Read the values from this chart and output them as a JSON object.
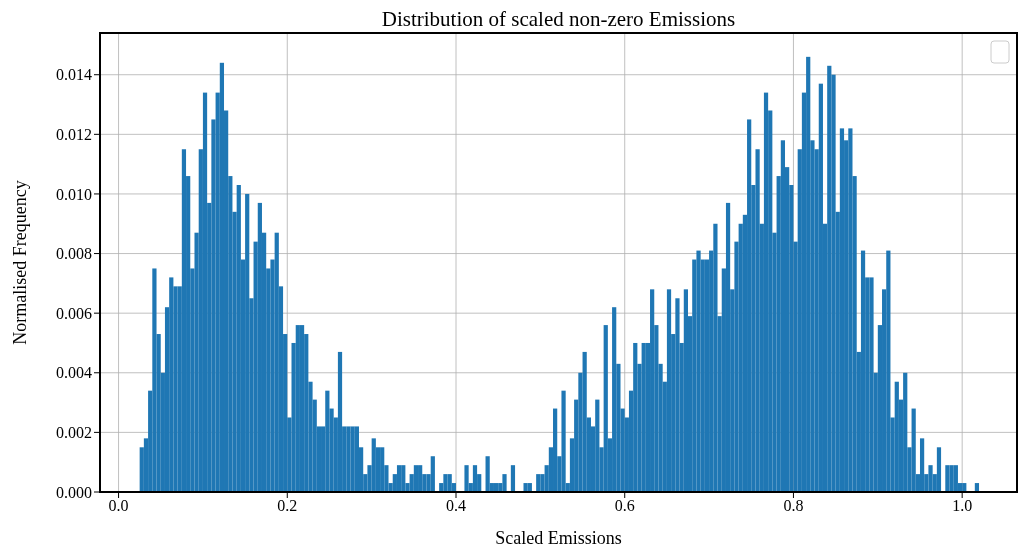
{
  "chart_data": {
    "type": "histogram",
    "title": "Distribution of scaled non-zero Emissions",
    "xlabel": "Scaled Emissions",
    "ylabel": "Normalised Frequency",
    "color": "#1f77b4",
    "bins": [
      0.025,
      0.03,
      0.035,
      0.04,
      0.045,
      0.05,
      0.055,
      0.06,
      0.065,
      0.07,
      0.075,
      0.08,
      0.085,
      0.09,
      0.095,
      0.1,
      0.105,
      0.11,
      0.115,
      0.12,
      0.125,
      0.13,
      0.135,
      0.14,
      0.145,
      0.15,
      0.155,
      0.16,
      0.165,
      0.17,
      0.175,
      0.18,
      0.185,
      0.19,
      0.195,
      0.2,
      0.205,
      0.21,
      0.215,
      0.22,
      0.225,
      0.23,
      0.235,
      0.24,
      0.245,
      0.25,
      0.255,
      0.26,
      0.265,
      0.27,
      0.275,
      0.28,
      0.285,
      0.29,
      0.295,
      0.3,
      0.305,
      0.31,
      0.315,
      0.32,
      0.325,
      0.33,
      0.335,
      0.34,
      0.345,
      0.35,
      0.355,
      0.36,
      0.365,
      0.37,
      0.375,
      0.38,
      0.385,
      0.39,
      0.395,
      0.4,
      0.405,
      0.41,
      0.415,
      0.42,
      0.425,
      0.43,
      0.435,
      0.44,
      0.445,
      0.45,
      0.455,
      0.46,
      0.465,
      0.47,
      0.475,
      0.48,
      0.485,
      0.49,
      0.495,
      0.5,
      0.505,
      0.51,
      0.515,
      0.52,
      0.525,
      0.53,
      0.535,
      0.54,
      0.545,
      0.55,
      0.555,
      0.56,
      0.565,
      0.57,
      0.575,
      0.58,
      0.585,
      0.59,
      0.595,
      0.6,
      0.605,
      0.61,
      0.615,
      0.62,
      0.625,
      0.63,
      0.635,
      0.64,
      0.645,
      0.65,
      0.655,
      0.66,
      0.665,
      0.67,
      0.675,
      0.68,
      0.685,
      0.69,
      0.695,
      0.7,
      0.705,
      0.71,
      0.715,
      0.72,
      0.725,
      0.73,
      0.735,
      0.74,
      0.745,
      0.75,
      0.755,
      0.76,
      0.765,
      0.77,
      0.775,
      0.78,
      0.785,
      0.79,
      0.795,
      0.8,
      0.805,
      0.81,
      0.815,
      0.82,
      0.825,
      0.83,
      0.835,
      0.84,
      0.845,
      0.85,
      0.855,
      0.86,
      0.865,
      0.87,
      0.875,
      0.88,
      0.885,
      0.89,
      0.895,
      0.9,
      0.905,
      0.91,
      0.915,
      0.92,
      0.925,
      0.93,
      0.935,
      0.94,
      0.945,
      0.95,
      0.955,
      0.96,
      0.965,
      0.97,
      0.975,
      0.98,
      0.985,
      0.99,
      0.995,
      1.0,
      1.005,
      1.01,
      1.015,
      1.02
    ],
    "values": [
      0.0015,
      0.0018,
      0.0034,
      0.0075,
      0.0053,
      0.004,
      0.0062,
      0.0072,
      0.0069,
      0.0069,
      0.0115,
      0.0106,
      0.0075,
      0.0087,
      0.0115,
      0.0134,
      0.0097,
      0.0125,
      0.0134,
      0.0144,
      0.0128,
      0.0106,
      0.0094,
      0.0103,
      0.0078,
      0.01,
      0.0065,
      0.0084,
      0.0097,
      0.0087,
      0.0075,
      0.0078,
      0.0087,
      0.0069,
      0.0053,
      0.0025,
      0.005,
      0.0056,
      0.0056,
      0.0053,
      0.0037,
      0.0031,
      0.0022,
      0.0022,
      0.0034,
      0.0028,
      0.0025,
      0.0047,
      0.0022,
      0.0022,
      0.0022,
      0.0022,
      0.0015,
      0.0006,
      0.0009,
      0.0018,
      0.0015,
      0.0015,
      0.0009,
      0.0003,
      0.0006,
      0.0009,
      0.0009,
      0.0003,
      0.0006,
      0.0009,
      0.0009,
      0.0006,
      0.0006,
      0.0012,
      0,
      0.0003,
      0.0006,
      0.0006,
      0.0003,
      0,
      0,
      0.0009,
      0.0003,
      0.0009,
      0.0006,
      0,
      0.0012,
      0.0003,
      0.0003,
      0.0003,
      0.0006,
      0,
      0.0009,
      0,
      0,
      0.0003,
      0.0003,
      0,
      0.0006,
      0.0006,
      0.0009,
      0.0015,
      0.0028,
      0.0012,
      0.0034,
      0.0003,
      0.0018,
      0.0031,
      0.004,
      0.0047,
      0.0025,
      0.0022,
      0.0031,
      0.0015,
      0.0056,
      0.0018,
      0.0062,
      0.0043,
      0.0028,
      0.0025,
      0.0034,
      0.005,
      0.0043,
      0.005,
      0.005,
      0.0068,
      0.0056,
      0.0043,
      0.0037,
      0.0068,
      0.0053,
      0.0065,
      0.005,
      0.0068,
      0.0059,
      0.0078,
      0.0081,
      0.0078,
      0.0078,
      0.0081,
      0.009,
      0.0059,
      0.0075,
      0.0097,
      0.0068,
      0.0084,
      0.009,
      0.0093,
      0.0125,
      0.0103,
      0.0115,
      0.009,
      0.0134,
      0.0128,
      0.0087,
      0.0106,
      0.0118,
      0.0109,
      0.0103,
      0.0084,
      0.0115,
      0.0134,
      0.0146,
      0.0118,
      0.0115,
      0.0137,
      0.009,
      0.0143,
      0.014,
      0.0094,
      0.0122,
      0.0118,
      0.0122,
      0.0106,
      0.0047,
      0.0081,
      0.0072,
      0.0072,
      0.004,
      0.0056,
      0.0068,
      0.0081,
      0.0025,
      0.0037,
      0.0031,
      0.004,
      0.0015,
      0.0028,
      0.0006,
      0.0018,
      0.0006,
      0.0009,
      0.0006,
      0.0015,
      0,
      0.0009,
      0.0009,
      0.0009,
      0.0003,
      0.0003,
      0,
      0,
      0.0003
    ],
    "xlim": [
      -0.022,
      1.065
    ],
    "ylim": [
      0,
      0.0154
    ],
    "xticks": [
      {
        "value": 0,
        "label": "0.0"
      },
      {
        "value": 0.2,
        "label": "0.2"
      },
      {
        "value": 0.4,
        "label": "0.4"
      },
      {
        "value": 0.6,
        "label": "0.6"
      },
      {
        "value": 0.8,
        "label": "0.8"
      },
      {
        "value": 1,
        "label": "1.0"
      }
    ],
    "yticks": [
      {
        "value": 0,
        "label": "0.000"
      },
      {
        "value": 0.002,
        "label": "0.002"
      },
      {
        "value": 0.004,
        "label": "0.004"
      },
      {
        "value": 0.006,
        "label": "0.006"
      },
      {
        "value": 0.008,
        "label": "0.008"
      },
      {
        "value": 0.01,
        "label": "0.010"
      },
      {
        "value": 0.012,
        "label": "0.012"
      },
      {
        "value": 0.014,
        "label": "0.014"
      }
    ],
    "grid": true
  }
}
